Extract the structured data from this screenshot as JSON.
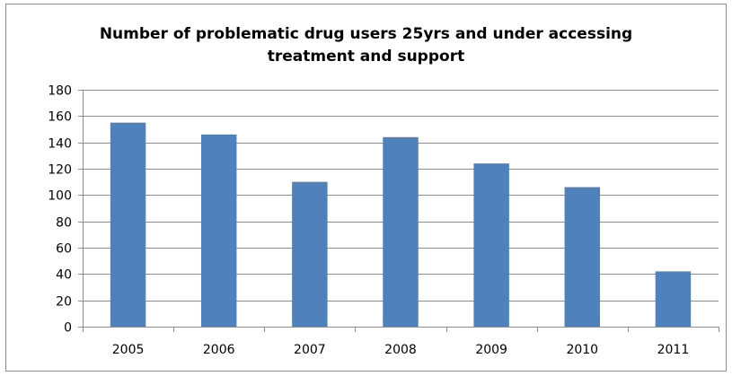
{
  "chart_data": {
    "type": "bar",
    "title_lines": [
      "Number of problematic drug users 25yrs and under accessing",
      "treatment and support"
    ],
    "categories": [
      "2005",
      "2006",
      "2007",
      "2008",
      "2009",
      "2010",
      "2011"
    ],
    "values": [
      155,
      146,
      110,
      144,
      124,
      106,
      42
    ],
    "ylim": [
      0,
      180
    ],
    "yticks": [
      0,
      20,
      40,
      60,
      80,
      100,
      120,
      140,
      160,
      180
    ],
    "grid": true,
    "legend": false,
    "bar_color": "#4f81bd"
  }
}
